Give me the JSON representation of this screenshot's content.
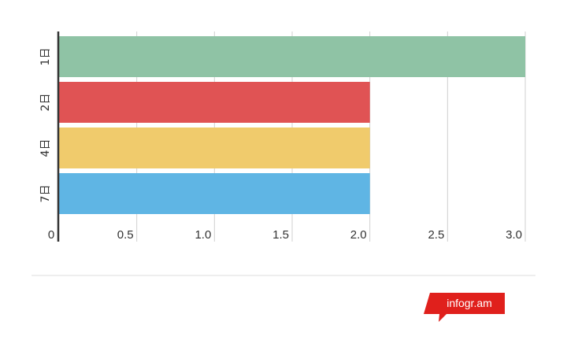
{
  "chart_data": {
    "type": "bar",
    "orientation": "horizontal",
    "categories": [
      "1日",
      "2日",
      "4日",
      "7日"
    ],
    "values": [
      3.0,
      2.0,
      2.0,
      2.0
    ],
    "colors": [
      "#8fc3a5",
      "#e05354",
      "#f0cb6c",
      "#5fb5e4"
    ],
    "xlim": [
      0,
      3.0
    ],
    "ticks": [
      "0",
      "0.5",
      "1.0",
      "1.5",
      "2.0",
      "2.5",
      "3.0"
    ],
    "grid": true,
    "title": "",
    "xlabel": "",
    "ylabel": ""
  },
  "branding": {
    "label": "infogr.am",
    "color": "#e0201c"
  }
}
